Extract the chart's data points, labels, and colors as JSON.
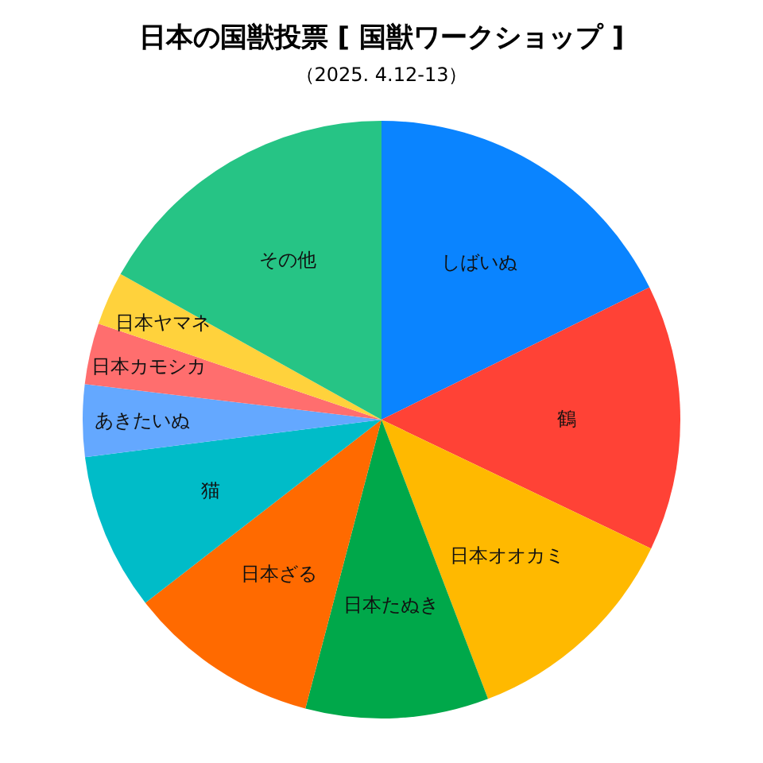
{
  "chart_data": {
    "type": "pie",
    "title": "日本の国獣投票 [ 国獣ワークショップ ]",
    "subtitle": "（2025. 4.12-13）",
    "categories": [
      "しばいぬ",
      "鶴",
      "日本オオカミ",
      "日本たぬき",
      "日本ざる",
      "猫",
      "あきたいぬ",
      "日本カモシカ",
      "日本ヤマネ",
      "その他"
    ],
    "values": [
      17.7,
      14.4,
      12.1,
      9.9,
      10.4,
      8.5,
      3.9,
      3.3,
      2.9,
      16.9
    ],
    "colors": [
      "#0a84ff",
      "#ff4236",
      "#ffb900",
      "#00a84a",
      "#ff6a00",
      "#00bcc8",
      "#64a8ff",
      "#ff6e6e",
      "#ffd23c",
      "#26c485"
    ],
    "legend": false
  }
}
